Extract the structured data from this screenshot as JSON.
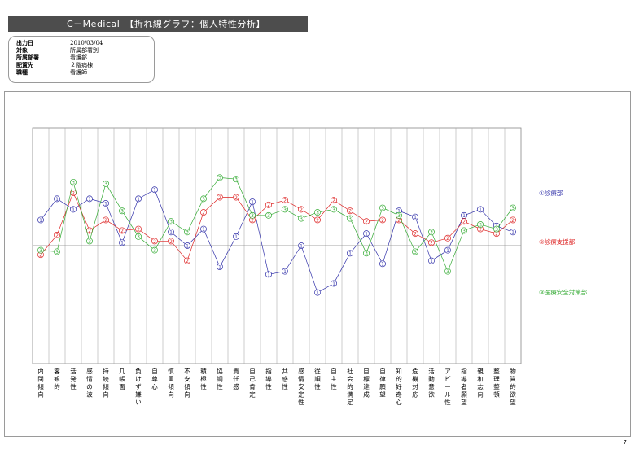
{
  "header": {
    "title": "C－Medical　【折れ線グラフ：個人特性分析】"
  },
  "info": [
    {
      "label": "出力日",
      "value": "2010/03/04"
    },
    {
      "label": "対象",
      "value": "所属部署別"
    },
    {
      "label": "所属部署",
      "value": "看護部"
    },
    {
      "label": "配置先",
      "value": "２階病棟"
    },
    {
      "label": "職種",
      "value": "看護師"
    }
  ],
  "page_number": "7",
  "chart_data": {
    "type": "line",
    "title": "",
    "xlabel": "",
    "ylabel": "",
    "grid": true,
    "legend_position": "right",
    "categories": [
      "内閉傾向",
      "客観的",
      "活発性",
      "感情の波",
      "持続傾向",
      "几帳面",
      "負けず嫌い",
      "自尊心",
      "慎重傾向",
      "不安傾向",
      "積極性",
      "協調性",
      "責任感",
      "自己肯定",
      "指導性",
      "共感性",
      "感情安定性",
      "従順性",
      "自主性",
      "社会的満足",
      "目標達成",
      "自律願望",
      "知的好奇心",
      "危機対応",
      "活動意欲",
      "アピール性",
      "指導者願望",
      "親和志向",
      "整理整頓",
      "物質的欲望"
    ],
    "y_range": [
      -0.78,
      0.78
    ],
    "baseline": 0,
    "series": [
      {
        "name": "①診療部",
        "marker": "①",
        "color": "#3333aa",
        "values": [
          0.17,
          0.31,
          0.24,
          0.31,
          0.28,
          0.02,
          0.31,
          0.37,
          0.09,
          0.0,
          0.11,
          -0.14,
          0.06,
          0.29,
          -0.19,
          -0.17,
          0.0,
          -0.31,
          -0.25,
          -0.05,
          0.08,
          -0.12,
          0.23,
          0.19,
          -0.1,
          -0.03,
          0.2,
          0.24,
          0.13,
          0.09
        ]
      },
      {
        "name": "②診療支援部",
        "marker": "②",
        "color": "#dd2222",
        "values": [
          -0.06,
          0.07,
          0.35,
          0.1,
          0.17,
          0.1,
          0.11,
          0.03,
          0.03,
          -0.1,
          0.22,
          0.32,
          0.32,
          0.17,
          0.27,
          0.3,
          0.24,
          0.17,
          0.3,
          0.23,
          0.16,
          0.17,
          0.17,
          0.08,
          0.02,
          0.05,
          0.16,
          0.11,
          0.08,
          0.17
        ]
      },
      {
        "name": "③医療安全対策部",
        "marker": "③",
        "color": "#33aa33",
        "values": [
          -0.03,
          -0.04,
          0.42,
          0.03,
          0.41,
          0.23,
          0.06,
          -0.03,
          0.16,
          0.09,
          0.31,
          0.45,
          0.44,
          0.2,
          0.2,
          0.24,
          0.18,
          0.22,
          0.24,
          0.18,
          -0.05,
          0.25,
          0.2,
          -0.04,
          0.09,
          -0.17,
          0.1,
          0.14,
          0.11,
          0.25
        ]
      }
    ]
  }
}
